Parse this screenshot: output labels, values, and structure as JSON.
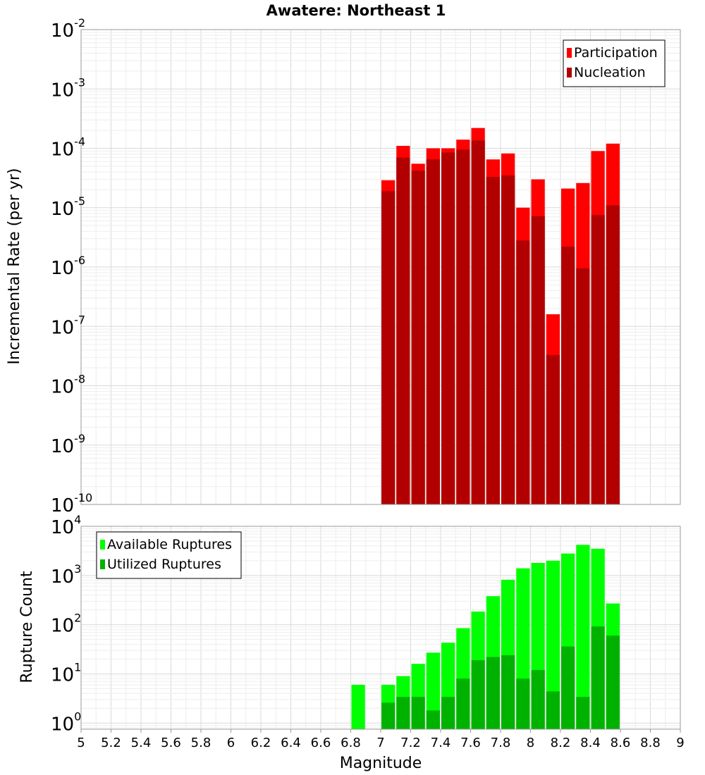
{
  "chart_data": [
    {
      "type": "bar",
      "title": "Awatere: Northeast 1",
      "xlabel": "",
      "ylabel": "Incremental Rate (per yr)",
      "yscale": "log",
      "ylim": [
        1e-10,
        0.01
      ],
      "xlim": [
        5,
        9
      ],
      "bin_width": 0.1,
      "grid": true,
      "legend_position": "top-right",
      "ytick_exponents": [
        "-10",
        "-9",
        "-8",
        "-7",
        "-6",
        "-5",
        "-4",
        "-3",
        "-2"
      ],
      "ytick_base": "10",
      "x": [
        7.05,
        7.15,
        7.25,
        7.35,
        7.45,
        7.55,
        7.65,
        7.75,
        7.85,
        7.95,
        8.05,
        8.15,
        8.25,
        8.35,
        8.45,
        8.55
      ],
      "series": [
        {
          "name": "Participation",
          "color": "#ff0000",
          "values": [
            2.9e-05,
            0.00011,
            5.5e-05,
            0.0001,
            0.0001,
            0.00014,
            0.00022,
            6.5e-05,
            8.2e-05,
            1e-05,
            3e-05,
            1.6e-07,
            2.1e-05,
            2.6e-05,
            9e-05,
            0.00012
          ]
        },
        {
          "name": "Nucleation",
          "color": "#b20000",
          "values": [
            1.9e-05,
            7e-05,
            4.2e-05,
            6.5e-05,
            8.5e-05,
            9.5e-05,
            0.000135,
            3.3e-05,
            3.5e-05,
            2.8e-06,
            7.2e-06,
            3.3e-08,
            2.2e-06,
            9.5e-07,
            7.5e-06,
            1.1e-05
          ]
        }
      ]
    },
    {
      "type": "bar",
      "title": "",
      "xlabel": "Magnitude",
      "ylabel": "Rupture Count",
      "yscale": "log",
      "ylim": [
        0.75,
        10000
      ],
      "xlim": [
        5,
        9
      ],
      "bin_width": 0.1,
      "grid": true,
      "legend_position": "top-left",
      "ytick_exponents": [
        "0",
        "1",
        "2",
        "3",
        "4"
      ],
      "ytick_base": "10",
      "xticks": [
        "5",
        "5.2",
        "5.4",
        "5.6",
        "5.8",
        "6",
        "6.2",
        "6.4",
        "6.6",
        "6.8",
        "7",
        "7.2",
        "7.4",
        "7.6",
        "7.8",
        "8",
        "8.2",
        "8.4",
        "8.6",
        "8.8",
        "9"
      ],
      "x": [
        6.85,
        7.05,
        7.15,
        7.25,
        7.35,
        7.45,
        7.55,
        7.65,
        7.75,
        7.85,
        7.95,
        8.05,
        8.15,
        8.25,
        8.35,
        8.45,
        8.55
      ],
      "series": [
        {
          "name": "Available Ruptures",
          "color": "#00ff00",
          "values": [
            6,
            6,
            9,
            16,
            27,
            43,
            85,
            185,
            380,
            820,
            1400,
            1800,
            2000,
            2800,
            4200,
            3500,
            270
          ]
        },
        {
          "name": "Utilized Ruptures",
          "color": "#00b200",
          "values": [
            null,
            2.6,
            3.4,
            3.4,
            1.8,
            3.4,
            8,
            19,
            22,
            24,
            8,
            12,
            4.4,
            36,
            3.4,
            92,
            60
          ]
        }
      ]
    }
  ]
}
